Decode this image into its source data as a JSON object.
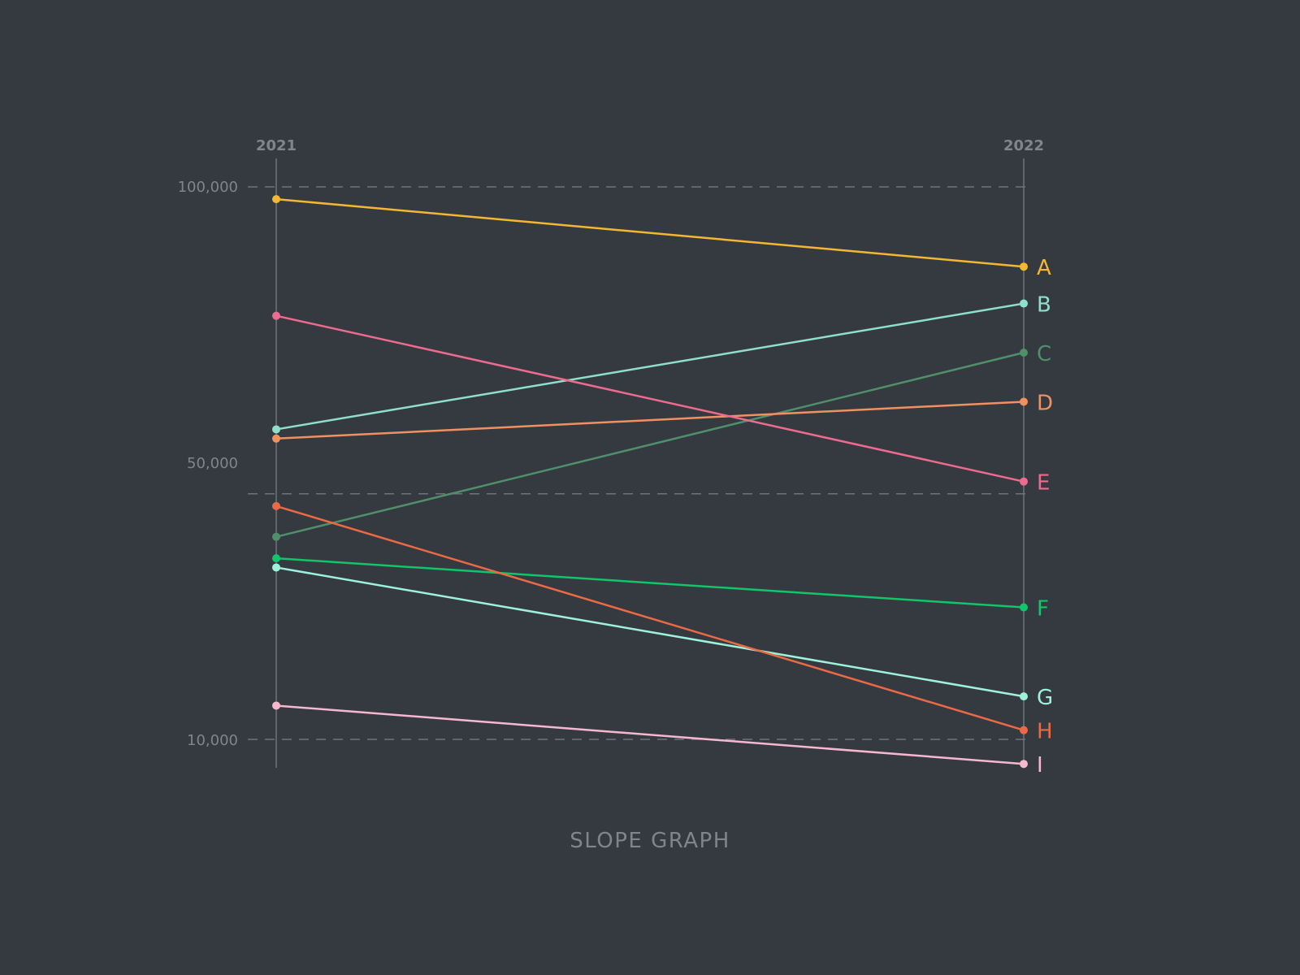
{
  "chart_data": {
    "type": "line",
    "subtype": "slope",
    "caption": "SLOPE GRAPH",
    "x": [
      "2021",
      "2022"
    ],
    "yticks": [
      100000,
      50000,
      10000
    ],
    "ytick_labels": [
      "100,000",
      "50,000",
      "10,000"
    ],
    "ylim": [
      10000,
      100000
    ],
    "grid": true,
    "series": [
      {
        "name": "A",
        "color": "#f4b731",
        "values": [
          98000,
          87000
        ]
      },
      {
        "name": "B",
        "color": "#8ee0c8",
        "values": [
          60500,
          81000
        ]
      },
      {
        "name": "C",
        "color": "#4f8f6a",
        "values": [
          43000,
          73000
        ]
      },
      {
        "name": "D",
        "color": "#f0915f",
        "values": [
          59000,
          65000
        ]
      },
      {
        "name": "E",
        "color": "#ec6b8e",
        "values": [
          79000,
          52000
        ]
      },
      {
        "name": "F",
        "color": "#10c66a",
        "values": [
          39500,
          31500
        ]
      },
      {
        "name": "G",
        "color": "#9ef2da",
        "values": [
          38000,
          17000
        ]
      },
      {
        "name": "H",
        "color": "#ea6a46",
        "values": [
          48000,
          11500
        ]
      },
      {
        "name": "I",
        "color": "#f6b8cf",
        "values": [
          15500,
          6000
        ]
      }
    ]
  }
}
